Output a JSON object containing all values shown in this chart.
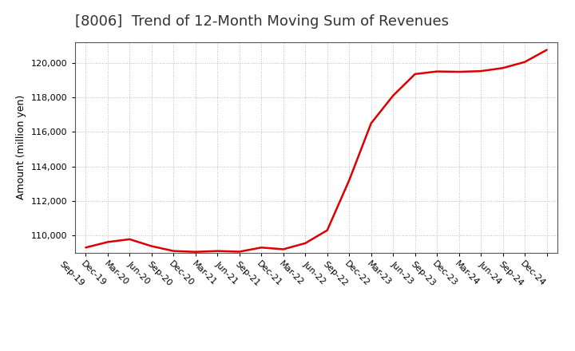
{
  "title": "[8006]  Trend of 12-Month Moving Sum of Revenues",
  "ylabel": "Amount (million yen)",
  "background_color": "#ffffff",
  "plot_bg_color": "#ffffff",
  "grid_color": "#bbbbbb",
  "line_color": "#dd0000",
  "x_labels": [
    "Sep-19",
    "Dec-19",
    "Mar-20",
    "Jun-20",
    "Sep-20",
    "Dec-20",
    "Mar-21",
    "Jun-21",
    "Sep-21",
    "Dec-21",
    "Mar-22",
    "Jun-22",
    "Sep-22",
    "Dec-22",
    "Mar-23",
    "Jun-23",
    "Sep-23",
    "Dec-23",
    "Mar-24",
    "Jun-24",
    "Sep-24",
    "Dec-24"
  ],
  "y_values": [
    109300,
    109620,
    109780,
    109380,
    109100,
    109050,
    109100,
    109060,
    109300,
    109200,
    109550,
    110300,
    113200,
    116500,
    118100,
    119350,
    119500,
    119480,
    119520,
    119700,
    120050,
    120750
  ],
  "ylim_min": 109000,
  "ylim_max": 121200,
  "yticks": [
    110000,
    112000,
    114000,
    116000,
    118000,
    120000
  ],
  "title_fontsize": 13,
  "ylabel_fontsize": 9,
  "tick_fontsize": 8,
  "line_width": 1.8
}
